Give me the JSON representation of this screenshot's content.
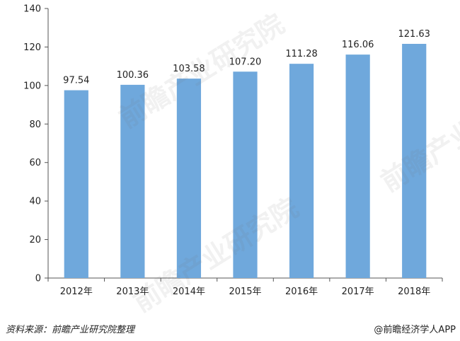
{
  "chart_data": {
    "type": "bar",
    "categories": [
      "2012年",
      "2013年",
      "2014年",
      "2015年",
      "2016年",
      "2017年",
      "2018年"
    ],
    "values": [
      97.54,
      100.36,
      103.58,
      107.2,
      111.28,
      116.06,
      121.63
    ],
    "value_labels": [
      "97.54",
      "100.36",
      "103.58",
      "107.20",
      "111.28",
      "116.06",
      "121.63"
    ],
    "ylim": [
      0,
      140
    ],
    "yticks": [
      0,
      20,
      40,
      60,
      80,
      100,
      120,
      140
    ],
    "grid": false,
    "legend": "none",
    "bar_color": "#6fa8dc"
  },
  "footer": {
    "source": "资料来源：前瞻产业研究院整理",
    "credit": "@前瞻经济学人APP"
  },
  "watermark": {
    "text": "前瞻产业研究院"
  }
}
